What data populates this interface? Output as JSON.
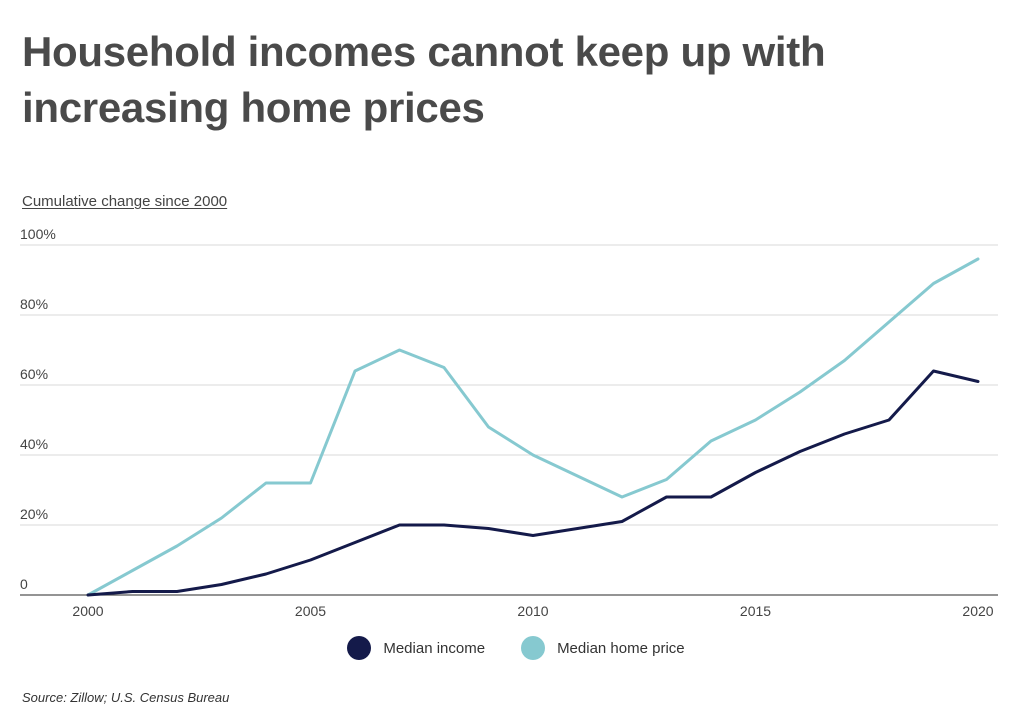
{
  "chart_data": {
    "type": "line",
    "title": "Household incomes cannot keep up with increasing home prices",
    "ylabel": "Cumulative change since 2000",
    "xlabel": "",
    "xlim": [
      2000,
      2020
    ],
    "ylim": [
      0,
      100
    ],
    "x_ticks": [
      2000,
      2005,
      2010,
      2015,
      2020
    ],
    "y_ticks": [
      0,
      20,
      40,
      60,
      80,
      100
    ],
    "y_tick_labels": [
      "0",
      "20%",
      "40%",
      "60%",
      "80%",
      "100%"
    ],
    "x": [
      2000,
      2001,
      2002,
      2003,
      2004,
      2005,
      2006,
      2007,
      2008,
      2009,
      2010,
      2011,
      2012,
      2013,
      2014,
      2015,
      2016,
      2017,
      2018,
      2019,
      2020
    ],
    "series": [
      {
        "name": "Median income",
        "color": "#141a4a",
        "values": [
          0,
          1,
          1,
          3,
          6,
          10,
          15,
          20,
          20,
          19,
          17,
          19,
          21,
          28,
          28,
          35,
          41,
          46,
          50,
          64,
          61
        ]
      },
      {
        "name": "Median home price",
        "color": "#86c9d0",
        "values": [
          0,
          7,
          14,
          22,
          32,
          32,
          64,
          70,
          65,
          48,
          40,
          34,
          28,
          33,
          44,
          50,
          58,
          67,
          78,
          89,
          96
        ]
      }
    ],
    "grid": true,
    "legend_position": "bottom-center",
    "source": "Source:  Zillow; U.S. Census Bureau"
  }
}
